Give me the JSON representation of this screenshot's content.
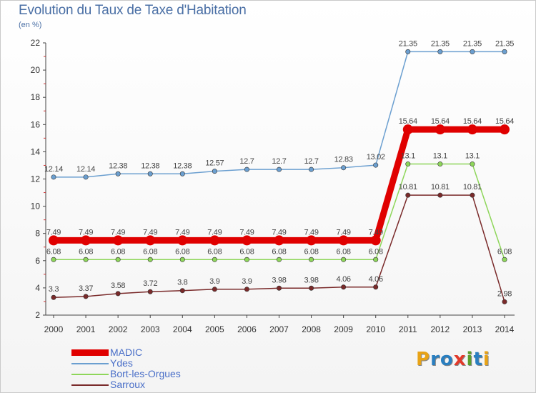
{
  "title": "Evolution du Taux de Taxe d'Habitation",
  "unit_label": "(en %)",
  "logo": {
    "letters": [
      "P",
      "r",
      "o",
      "x",
      "i",
      "t",
      "i"
    ],
    "colors": [
      "#e8a317",
      "#2a7fc0",
      "#2a7fc0",
      "#e23a2a",
      "#5aa02c",
      "#2a7fc0",
      "#e8a317"
    ]
  },
  "chart_data": {
    "type": "line",
    "title": "Evolution du Taux de Taxe d'Habitation",
    "ylabel": "(en %)",
    "ylim": [
      2,
      22
    ],
    "yticks": [
      "2",
      "4",
      "6",
      "8",
      "10",
      "12",
      "14",
      "16",
      "18",
      "20",
      "22"
    ],
    "x": [
      "2000",
      "2001",
      "2002",
      "2003",
      "2004",
      "2005",
      "2006",
      "2007",
      "2008",
      "2009",
      "2010",
      "2011",
      "2012",
      "2013",
      "2014"
    ],
    "grid": false,
    "legend_position": "bottom-left",
    "series": [
      {
        "name": "MADIC",
        "color": "#e00000",
        "width": 9,
        "marker": 7,
        "values": [
          7.49,
          7.49,
          7.49,
          7.49,
          7.49,
          7.49,
          7.49,
          7.49,
          7.49,
          7.49,
          7.49,
          15.64,
          15.64,
          15.64,
          15.64
        ],
        "labels": [
          "7.49",
          "7.49",
          "7.49",
          "7.49",
          "7.49",
          "7.49",
          "7.49",
          "7.49",
          "7.49",
          "7.49",
          "7.49",
          "15.64",
          "15.64",
          "15.64",
          "15.64"
        ]
      },
      {
        "name": "Ydes",
        "color": "#6b9fd0",
        "width": 1.5,
        "marker": 3.2,
        "values": [
          12.14,
          12.14,
          12.38,
          12.38,
          12.38,
          12.57,
          12.7,
          12.7,
          12.7,
          12.83,
          13.02,
          21.35,
          21.35,
          21.35,
          21.35
        ],
        "labels": [
          "12.14",
          "12.14",
          "12.38",
          "12.38",
          "12.38",
          "12.57",
          "12.7",
          "12.7",
          "12.7",
          "12.83",
          "13.02",
          "21.35",
          "21.35",
          "21.35",
          "21.35"
        ]
      },
      {
        "name": "Bort-les-Orgues",
        "color": "#8ed65a",
        "width": 1.5,
        "marker": 3.2,
        "values": [
          6.08,
          6.08,
          6.08,
          6.08,
          6.08,
          6.08,
          6.08,
          6.08,
          6.08,
          6.08,
          6.08,
          13.1,
          13.1,
          13.1,
          6.08
        ],
        "labels": [
          "6.08",
          "6.08",
          "6.08",
          "6.08",
          "6.08",
          "6.08",
          "6.08",
          "6.08",
          "6.08",
          "6.08",
          "6.08",
          "13.1",
          "13.1",
          "13.1",
          "6.08"
        ]
      },
      {
        "name": "Sarroux",
        "color": "#7a2a2a",
        "width": 1.5,
        "marker": 3.2,
        "values": [
          3.3,
          3.37,
          3.58,
          3.72,
          3.8,
          3.9,
          3.9,
          3.98,
          3.98,
          4.06,
          4.06,
          10.81,
          10.81,
          10.81,
          2.98
        ],
        "labels": [
          "3.3",
          "3.37",
          "3.58",
          "3.72",
          "3.8",
          "3.9",
          "3.9",
          "3.98",
          "3.98",
          "4.06",
          "4.06",
          "10.81",
          "10.81",
          "10.81",
          "2.98"
        ]
      }
    ]
  }
}
